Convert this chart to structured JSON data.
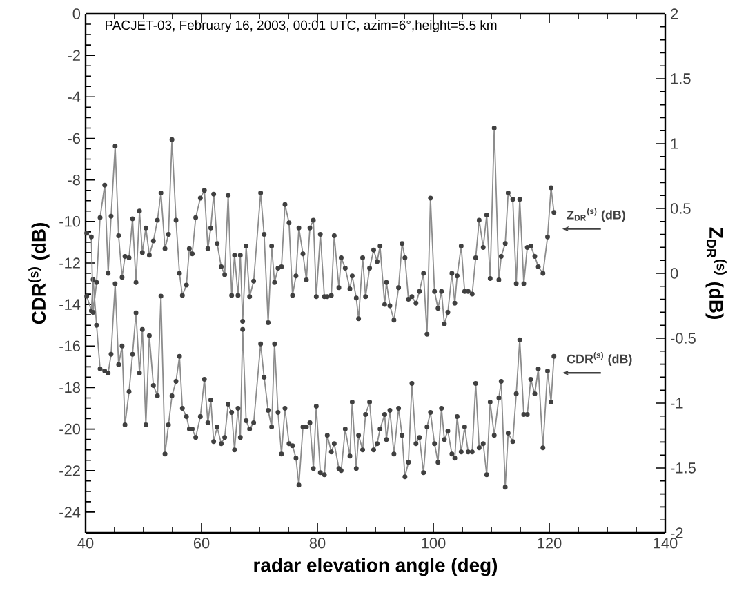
{
  "chart_data": {
    "type": "line",
    "title": "PACJET-03, February 16, 2003, 00:01 UTC, azim=6°,height=5.5 km",
    "xlabel": "radar elevation angle (deg)",
    "ylabel": "CDR$^{(s)}$ (dB)",
    "y2label": "Z$_{DR}$$^{(s)}$ (dB)",
    "xlim": [
      40,
      140
    ],
    "xticks": [
      40,
      60,
      80,
      100,
      120,
      140
    ],
    "ylim": [
      -25,
      0
    ],
    "yticks": [
      -24,
      -22,
      -20,
      -18,
      -16,
      -14,
      -12,
      -10,
      -8,
      -6,
      -4,
      -2,
      0
    ],
    "y2lim": [
      -2,
      2
    ],
    "y2ticks": [
      -2,
      -1.5,
      -1,
      -0.5,
      0,
      0.5,
      1,
      1.5,
      2
    ],
    "marker": "circle",
    "line_style": "solid",
    "series": [
      {
        "name": "Z$_{DR}$$^{(s)}$ (dB)",
        "color": "#8c8c8c",
        "axis": "y2",
        "x": [
          40.2,
          41.0,
          41.3,
          41.9,
          42.5,
          43.3,
          43.9,
          44.4,
          45.1,
          45.7,
          46.3,
          46.8,
          47.5,
          48.1,
          48.7,
          49.3,
          49.8,
          50.4,
          51.0,
          51.7,
          52.4,
          53.0,
          53.7,
          54.3,
          54.9,
          55.6,
          56.2,
          56.7,
          57.4,
          57.9,
          58.4,
          59.0,
          59.8,
          60.5,
          61.1,
          61.6,
          62.1,
          62.7,
          63.4,
          64.0,
          64.6,
          65.2,
          65.7,
          66.3,
          66.7,
          67.1,
          67.7,
          68.3,
          69.0,
          70.2,
          70.8,
          71.5,
          72.1,
          72.6,
          73.2,
          73.8,
          74.4,
          75.1,
          75.7,
          76.3,
          76.8,
          77.5,
          78.1,
          78.7,
          79.3,
          79.8,
          80.5,
          81.2,
          81.7,
          82.4,
          82.9,
          83.7,
          84.1,
          84.8,
          85.6,
          86.0,
          86.7,
          87.1,
          87.8,
          88.3,
          89.0,
          89.7,
          90.3,
          90.8,
          91.6,
          91.9,
          92.5,
          93.2,
          94.0,
          94.6,
          95.1,
          95.7,
          96.3,
          97.0,
          97.6,
          98.3,
          98.9,
          99.5,
          100.2,
          100.8,
          101.4,
          101.9,
          102.5,
          103.2,
          103.7,
          104.1,
          104.8,
          105.4,
          106.0,
          106.7,
          107.3,
          107.9,
          108.6,
          109.2,
          109.8,
          110.5,
          111.3,
          111.7,
          112.4,
          112.9,
          113.7,
          114.3,
          114.9,
          115.6,
          116.2,
          116.8,
          117.5,
          118.1,
          118.9,
          119.7,
          120.3,
          120.8
        ],
        "values": [
          0.31,
          0.28,
          -0.3,
          -0.07,
          0.43,
          0.68,
          0.0,
          0.44,
          0.98,
          0.29,
          -0.03,
          0.13,
          0.12,
          0.42,
          -0.07,
          0.48,
          0.16,
          0.35,
          0.14,
          0.25,
          0.41,
          0.62,
          0.19,
          0.3,
          1.03,
          0.41,
          0.0,
          -0.17,
          -0.09,
          0.19,
          0.15,
          0.43,
          0.58,
          0.64,
          0.19,
          0.35,
          0.61,
          0.23,
          0.05,
          -0.01,
          0.6,
          -0.17,
          0.14,
          -0.17,
          0.14,
          -0.37,
          0.21,
          -0.18,
          -0.06,
          0.62,
          0.3,
          -0.38,
          0.21,
          -0.07,
          0.04,
          0.05,
          0.53,
          0.39,
          -0.17,
          -0.02,
          0.35,
          0.15,
          -0.05,
          0.35,
          0.41,
          -0.18,
          0.3,
          -0.18,
          -0.18,
          -0.17,
          0.29,
          -0.11,
          0.12,
          0.04,
          -0.12,
          -0.02,
          -0.19,
          -0.35,
          0.12,
          -0.18,
          0.04,
          0.18,
          0.09,
          0.21,
          -0.24,
          -0.07,
          -0.25,
          -0.36,
          -0.11,
          0.23,
          0.12,
          -0.2,
          -0.18,
          -0.23,
          -0.14,
          0.0,
          -0.47,
          0.58,
          -0.14,
          -0.27,
          -0.14,
          -0.39,
          -0.3,
          0.0,
          -0.23,
          -0.02,
          0.21,
          -0.14,
          -0.14,
          -0.16,
          0.12,
          0.41,
          0.2,
          0.45,
          -0.04,
          1.12,
          -0.05,
          0.13,
          0.23,
          0.62,
          0.57,
          -0.08,
          0.57,
          -0.08,
          0.2,
          0.21,
          0.13,
          0.05,
          0.0,
          0.28,
          0.66,
          0.47
        ]
      },
      {
        "name": "CDR$^{(s)}$ (dB)",
        "color": "#8c8c8c",
        "axis": "y",
        "x": [
          40.2,
          41.0,
          41.3,
          41.9,
          42.5,
          43.3,
          43.9,
          44.4,
          45.1,
          45.7,
          46.3,
          46.8,
          47.5,
          48.1,
          48.7,
          49.3,
          49.8,
          50.4,
          51.0,
          51.7,
          52.4,
          53.0,
          53.7,
          54.3,
          54.9,
          55.6,
          56.2,
          56.7,
          57.4,
          57.9,
          58.4,
          59.0,
          59.8,
          60.5,
          61.1,
          61.6,
          62.1,
          62.7,
          63.4,
          64.0,
          64.6,
          65.2,
          65.7,
          66.3,
          66.7,
          67.1,
          67.7,
          68.3,
          69.0,
          70.2,
          70.8,
          71.5,
          72.1,
          72.6,
          73.2,
          73.8,
          74.4,
          75.1,
          75.7,
          76.3,
          76.8,
          77.5,
          78.1,
          78.7,
          79.3,
          79.8,
          80.5,
          81.2,
          81.7,
          82.4,
          82.9,
          83.7,
          84.1,
          84.8,
          85.6,
          86.0,
          86.7,
          87.1,
          87.8,
          88.3,
          89.0,
          89.7,
          90.3,
          90.8,
          91.6,
          91.9,
          92.5,
          93.2,
          94.0,
          94.6,
          95.1,
          95.7,
          96.3,
          97.0,
          97.6,
          98.3,
          98.9,
          99.5,
          100.2,
          100.8,
          101.4,
          101.9,
          102.5,
          103.2,
          103.7,
          104.1,
          104.8,
          105.4,
          106.0,
          106.7,
          107.3,
          107.9,
          108.6,
          109.2,
          109.8,
          110.5,
          111.3,
          111.7,
          112.4,
          112.9,
          113.7,
          114.3,
          114.9,
          115.6,
          116.2,
          116.8,
          117.5,
          118.1,
          118.9,
          119.7,
          120.3,
          120.8
        ],
        "values": [
          -13.6,
          -14.3,
          -12.8,
          -15.0,
          -17.1,
          -17.2,
          -17.3,
          -16.4,
          -13.0,
          -16.9,
          -16.0,
          -19.8,
          -18.2,
          -16.4,
          -14.4,
          -17.3,
          -15.2,
          -19.8,
          -15.5,
          -17.9,
          -18.4,
          -13.6,
          -21.2,
          -19.8,
          -18.4,
          -17.7,
          -16.5,
          -19.0,
          -19.4,
          -20.0,
          -20.0,
          -20.4,
          -19.4,
          -17.6,
          -19.7,
          -18.6,
          -20.6,
          -19.9,
          -20.7,
          -20.4,
          -18.8,
          -19.2,
          -21.0,
          -19.0,
          -20.4,
          -15.2,
          -19.6,
          -20.0,
          -19.7,
          -15.9,
          -17.5,
          -19.1,
          -19.9,
          -15.9,
          -19.2,
          -21.2,
          -19.0,
          -20.7,
          -20.8,
          -21.4,
          -22.7,
          -19.9,
          -19.9,
          -19.7,
          -21.9,
          -18.9,
          -22.1,
          -22.2,
          -20.3,
          -21.1,
          -20.7,
          -21.9,
          -22.0,
          -20.0,
          -21.3,
          -18.7,
          -21.9,
          -20.3,
          -21.0,
          -19.3,
          -18.7,
          -21.0,
          -20.7,
          -20.0,
          -19.3,
          -20.5,
          -19.1,
          -21.2,
          -19.0,
          -20.3,
          -22.3,
          -21.6,
          -17.8,
          -20.7,
          -20.4,
          -22.1,
          -19.9,
          -19.2,
          -20.7,
          -21.6,
          -19.0,
          -20.5,
          -20.1,
          -21.2,
          -21.4,
          -19.4,
          -21.1,
          -19.9,
          -21.1,
          -21.1,
          -17.8,
          -20.9,
          -20.7,
          -22.2,
          -18.7,
          -20.3,
          -18.5,
          -17.7,
          -22.8,
          -20.2,
          -20.6,
          -18.3,
          -15.7,
          -19.3,
          -19.3,
          -17.6,
          -18.3,
          -17.1,
          -20.9,
          -17.2,
          -18.7,
          -16.5
        ]
      }
    ]
  }
}
